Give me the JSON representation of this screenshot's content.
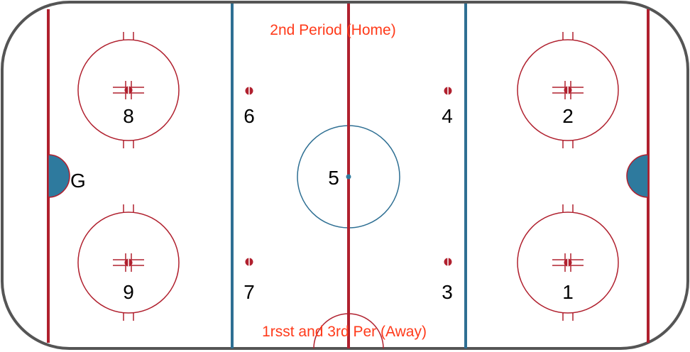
{
  "rink": {
    "board_color": "#555555",
    "red_line_color": "#b0202e",
    "blue_line_color": "#2e6f93",
    "crease_fill": "#2e7a9e",
    "label_color": "#ff3a1a"
  },
  "labels": {
    "top_period": "2nd Period (Home)",
    "bottom_period": "1rsst and 3rd Per (Away)"
  },
  "faceoff_spots": {
    "spot_1": "1",
    "spot_2": "2",
    "spot_3": "3",
    "spot_4": "4",
    "spot_5": "5",
    "spot_6": "6",
    "spot_7": "7",
    "spot_8": "8",
    "spot_9": "9"
  },
  "goal_label": "G"
}
